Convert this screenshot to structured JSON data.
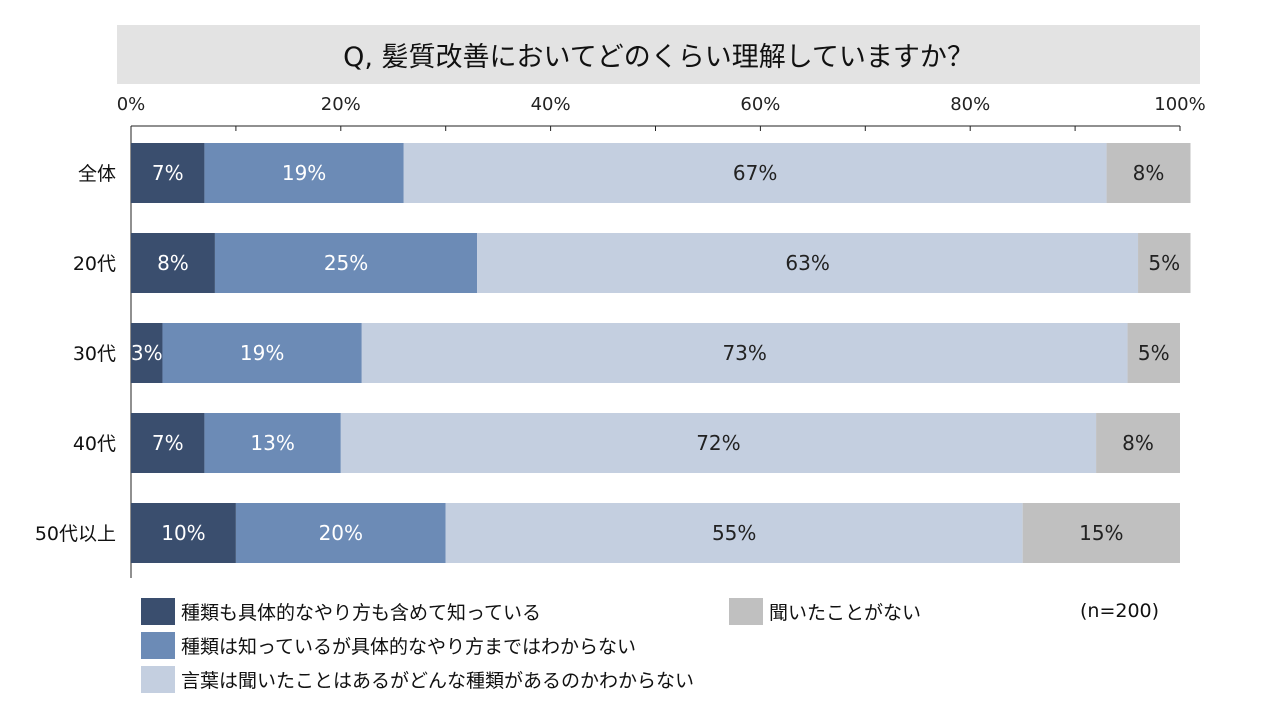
{
  "chart_data": {
    "type": "bar",
    "orientation": "horizontal",
    "stacked": true,
    "title": "Q, 髪質改善においてどのくらい理解していますか？",
    "categories": [
      "全体",
      "20代",
      "30代",
      "40代",
      "50代以上"
    ],
    "series": [
      {
        "name": "種類も具体的なやり方も含めて知っている",
        "color": "#3a4e6e",
        "values": [
          7,
          8,
          3,
          7,
          10
        ],
        "labels": [
          "7%",
          "8%",
          "3%",
          "7%",
          "10%"
        ]
      },
      {
        "name": "種類は知っているが具体的なやり方まではわからない",
        "color": "#6c8bb6",
        "values": [
          19,
          25,
          19,
          13,
          20
        ],
        "labels": [
          "19%",
          "25%",
          "19%",
          "13%",
          "20%"
        ]
      },
      {
        "name": "言葉は聞いたことはあるがどんな種類があるのかわからない",
        "color": "#c4cfe0",
        "values": [
          67,
          63,
          73,
          72,
          55
        ],
        "labels": [
          "67%",
          "63%",
          "73%",
          "72%",
          "55%"
        ]
      },
      {
        "name": "聞いたことがない",
        "color": "#c0c0c0",
        "values": [
          8,
          5,
          5,
          8,
          15
        ],
        "labels": [
          "8%",
          "5%",
          "5%",
          "8%",
          "15%"
        ]
      }
    ],
    "xlim": [
      0,
      100
    ],
    "xticks": [
      "0%",
      "20%",
      "40%",
      "60%",
      "80%",
      "100%"
    ],
    "axis_position": "top",
    "grid": false,
    "legend_position": "bottom"
  },
  "note": "(n=200)"
}
